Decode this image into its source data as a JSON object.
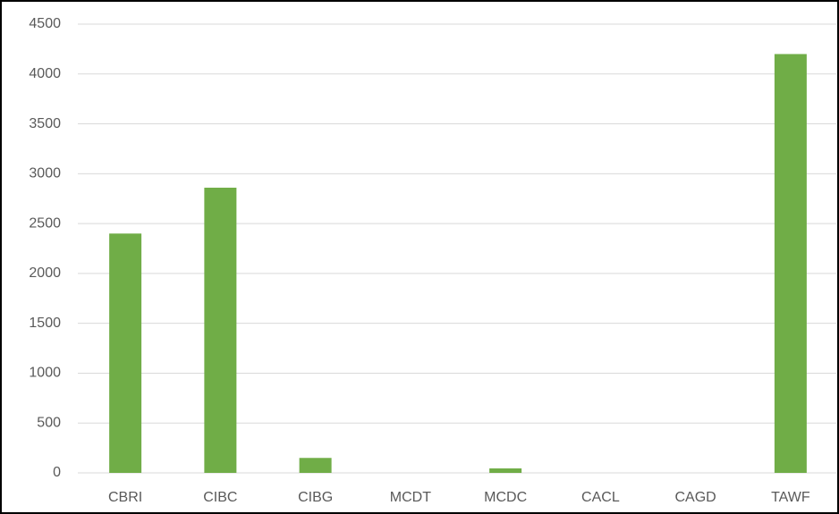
{
  "chart_data": {
    "type": "bar",
    "categories": [
      "CBRI",
      "CIBC",
      "CIBG",
      "MCDT",
      "MCDC",
      "CACL",
      "CAGD",
      "TAWF"
    ],
    "values": [
      2400,
      2860,
      150,
      0,
      45,
      0,
      0,
      4200
    ],
    "color": "#70ad47",
    "ylim": [
      0,
      4500
    ],
    "yticks": [
      0,
      500,
      1000,
      1500,
      2000,
      2500,
      3000,
      3500,
      4000,
      4500
    ],
    "grid": true
  }
}
